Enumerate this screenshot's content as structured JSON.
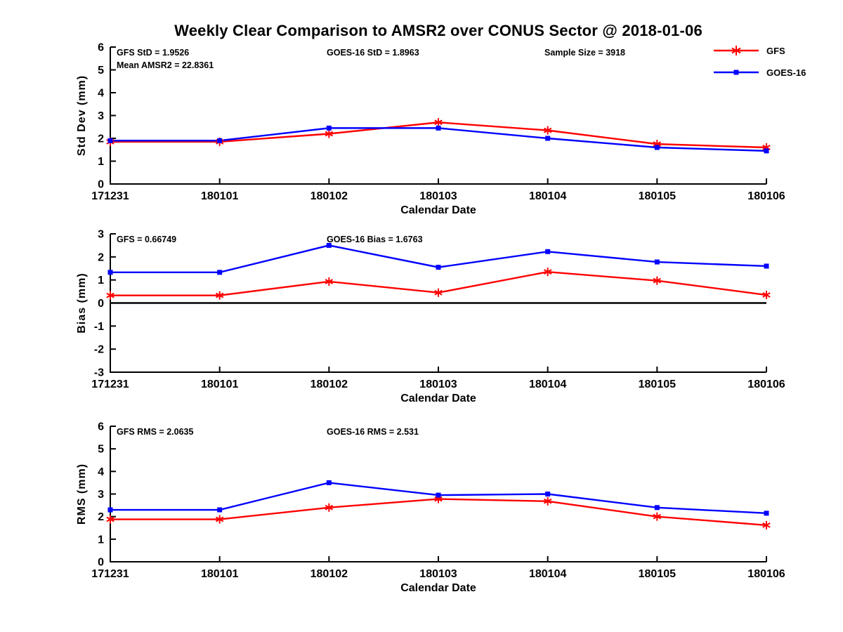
{
  "title": "Weekly Clear Comparison to AMSR2 over CONUS Sector @ 2018-01-06",
  "colors": {
    "gfs": "#ff0000",
    "goes16": "#0000ff",
    "axis": "#000000",
    "zero_line": "#000000",
    "background": "#ffffff"
  },
  "legend": {
    "items": [
      {
        "label": "GFS",
        "color": "#ff0000",
        "marker": "asterisk"
      },
      {
        "label": "GOES-16",
        "color": "#0000ff",
        "marker": "square"
      }
    ]
  },
  "x_axis": {
    "label": "Calendar Date",
    "categories": [
      "171231",
      "180101",
      "180102",
      "180103",
      "180104",
      "180105",
      "180106"
    ]
  },
  "chart_data": [
    {
      "type": "line",
      "id": "stddev",
      "ylabel": "Std Dev (mm)",
      "ylim": [
        0,
        6
      ],
      "yticks": [
        0,
        1,
        2,
        3,
        4,
        5,
        6
      ],
      "zero_line": false,
      "annotations": [
        {
          "text": "GFS StD = 1.9526",
          "slot": "left",
          "row": 0
        },
        {
          "text": "Mean AMSR2 = 22.8361",
          "slot": "left",
          "row": 1
        },
        {
          "text": "GOES-16 StD = 1.8963",
          "slot": "center",
          "row": 0
        },
        {
          "text": "Sample Size = 3918",
          "slot": "right",
          "row": 0
        }
      ],
      "series": [
        {
          "name": "GFS",
          "color": "#ff0000",
          "marker": "asterisk",
          "values": [
            1.85,
            1.85,
            2.2,
            2.7,
            2.35,
            1.75,
            1.6
          ]
        },
        {
          "name": "GOES-16",
          "color": "#0000ff",
          "marker": "square",
          "values": [
            1.9,
            1.9,
            2.45,
            2.45,
            2.0,
            1.6,
            1.45
          ]
        }
      ]
    },
    {
      "type": "line",
      "id": "bias",
      "ylabel": "Bias (mm)",
      "ylim": [
        -3,
        3
      ],
      "yticks": [
        -3,
        -2,
        -1,
        0,
        1,
        2,
        3
      ],
      "zero_line": true,
      "annotations": [
        {
          "text": "GFS = 0.66749",
          "slot": "left",
          "row": 0
        },
        {
          "text": "GOES-16 Bias  = 1.6763",
          "slot": "center",
          "row": 0
        }
      ],
      "series": [
        {
          "name": "GFS",
          "color": "#ff0000",
          "marker": "asterisk",
          "values": [
            0.33,
            0.33,
            0.93,
            0.45,
            1.35,
            0.97,
            0.35
          ]
        },
        {
          "name": "GOES-16",
          "color": "#0000ff",
          "marker": "square",
          "values": [
            1.33,
            1.33,
            2.5,
            1.55,
            2.23,
            1.78,
            1.6
          ]
        }
      ]
    },
    {
      "type": "line",
      "id": "rms",
      "ylabel": "RMS (mm)",
      "ylim": [
        0,
        6
      ],
      "yticks": [
        0,
        1,
        2,
        3,
        4,
        5,
        6
      ],
      "zero_line": false,
      "annotations": [
        {
          "text": "GFS RMS = 2.0635",
          "slot": "left",
          "row": 0
        },
        {
          "text": "GOES-16 RMS = 2.531",
          "slot": "center",
          "row": 0
        }
      ],
      "series": [
        {
          "name": "GFS",
          "color": "#ff0000",
          "marker": "asterisk",
          "values": [
            1.88,
            1.88,
            2.4,
            2.78,
            2.68,
            2.0,
            1.62
          ]
        },
        {
          "name": "GOES-16",
          "color": "#0000ff",
          "marker": "square",
          "values": [
            2.3,
            2.3,
            3.5,
            2.95,
            3.0,
            2.4,
            2.15
          ]
        }
      ]
    }
  ]
}
